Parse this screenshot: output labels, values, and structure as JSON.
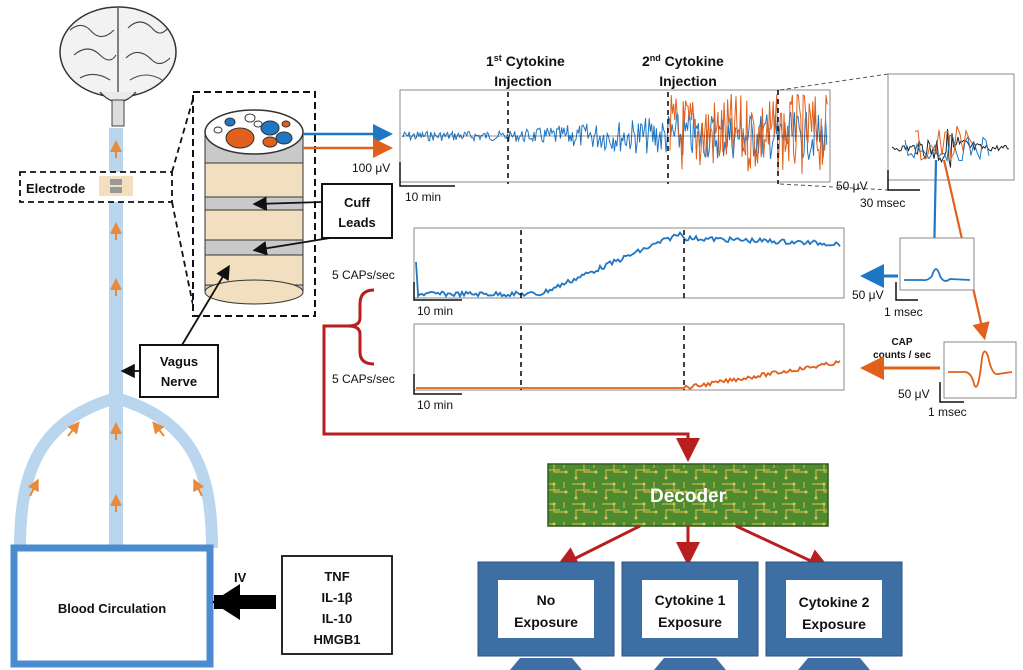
{
  "labels": {
    "electrode": "Electrode",
    "cuff_leads_1": "Cuff",
    "cuff_leads_2": "Leads",
    "vagus_1": "Vagus",
    "vagus_2": "Nerve",
    "blood_circulation": "Blood Circulation",
    "iv": "IV",
    "cytokines": [
      "TNF",
      "IL-1β",
      "IL-10",
      "HMGB1"
    ],
    "inj1_line1": "1st Cytokine",
    "inj1_sup": "st",
    "inj1_pre": "1",
    "inj1_post": " Cytokine",
    "inj1_line2": "Injection",
    "inj2_pre": "2",
    "inj2_sup": "nd",
    "inj2_post": " Cytokine",
    "inj2_line2": "Injection",
    "scale_100uv": "100 μV",
    "scale_10min_a": "10 min",
    "scale_50uv_a": "50 μV",
    "scale_30msec": "30 msec",
    "rate_1": "5 CAPs/sec",
    "scale_10min_b": "10 min",
    "rate_2": "5 CAPs/sec",
    "scale_10min_c": "10 min",
    "scale_50uv_b": "50 μV",
    "scale_1msec_b": "1 msec",
    "cap_counts_1": "CAP",
    "cap_counts_2": "counts / sec",
    "scale_50uv_c": "50 μV",
    "scale_1msec_c": "1 msec",
    "decoder": "Decoder",
    "out1_1": "No",
    "out1_2": "Exposure",
    "out2_1": "Cytokine 1",
    "out2_2": "Exposure",
    "out3_1": "Cytokine 2",
    "out3_2": "Exposure"
  },
  "colors": {
    "blue": "#1f77c4",
    "orange": "#e0601c",
    "red": "#b81e1e",
    "nerve": "#b9d6ee",
    "monitor": "#3d6fa5",
    "decoder_green": "#4e8a2e"
  }
}
